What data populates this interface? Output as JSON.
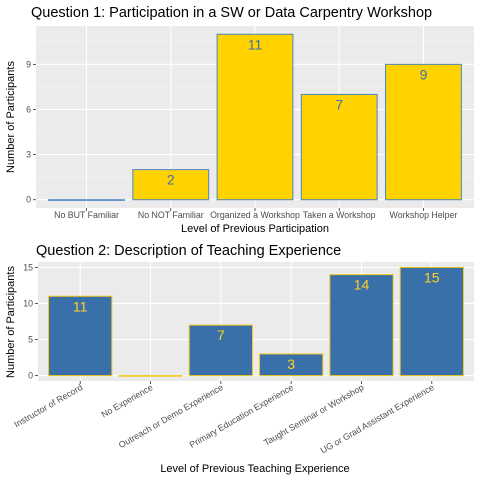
{
  "chart_data": [
    {
      "type": "bar",
      "title": "Question 1: Participation in a SW or Data Carpentry Workshop",
      "xlabel": "Level of Previous Participation",
      "ylabel": "Number of Participants",
      "categories": [
        "No BUT Familiar",
        "No NOT Familiar",
        "Organized a Workshop",
        "Taken a Workshop",
        "Workshop Helper"
      ],
      "values": [
        0,
        2,
        11,
        7,
        9
      ],
      "ylim": [
        -0.55,
        11.55
      ],
      "yticks": [
        0,
        3,
        6,
        9
      ],
      "fill_color": "#FFD200",
      "outline_color": "#4A86C4",
      "label_color": "#3F72AF",
      "panel_bg": "#EBEBEB",
      "grid": true,
      "tick_rotation": 0
    },
    {
      "type": "bar",
      "title": "Question 2: Description of Teaching Experience",
      "xlabel": "Level of Previous Teaching Experience",
      "ylabel": "Number of Participants",
      "categories": [
        "Instructor of Record",
        "No Experience",
        "Outreach or Demo Experience",
        "Primary Education Experience",
        "Taught Seminar or Workshop",
        "UG or Grad Assistant Experience"
      ],
      "values": [
        11,
        0,
        7,
        3,
        14,
        15
      ],
      "ylim": [
        -0.75,
        15.75
      ],
      "yticks": [
        0,
        5,
        10,
        15
      ],
      "fill_color": "#3A70AA",
      "outline_color": "#F2C81A",
      "label_color": "#FFD21F",
      "panel_bg": "#EBEBEB",
      "grid": true,
      "tick_rotation": -30
    }
  ]
}
